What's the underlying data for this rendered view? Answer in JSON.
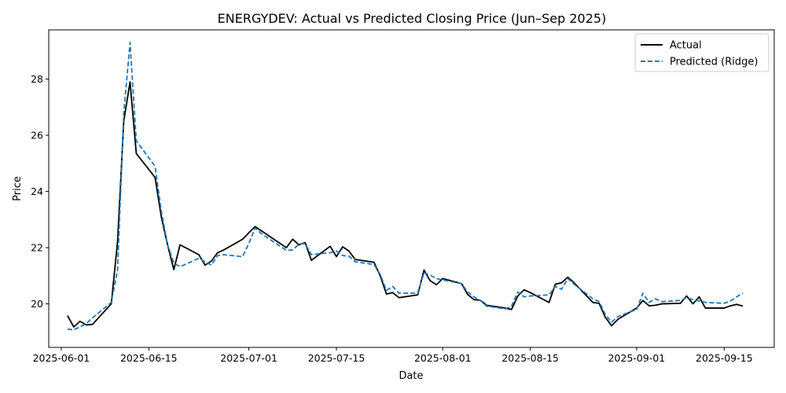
{
  "chart_data": {
    "type": "line",
    "title": "ENERGYDEV: Actual vs Predicted Closing Price (Jun–Sep 2025)",
    "xlabel": "Date",
    "ylabel": "Price",
    "x_range": [
      "2025-05-30",
      "2025-09-23"
    ],
    "ylim": [
      18.45,
      29.75
    ],
    "grid": false,
    "legend_position": "upper right",
    "x_ticks": [
      {
        "date": "2025-06-01",
        "label": "2025-06-01"
      },
      {
        "date": "2025-06-15",
        "label": "2025-06-15"
      },
      {
        "date": "2025-07-01",
        "label": "2025-07-01"
      },
      {
        "date": "2025-07-15",
        "label": "2025-07-15"
      },
      {
        "date": "2025-08-01",
        "label": "2025-08-01"
      },
      {
        "date": "2025-08-15",
        "label": "2025-08-15"
      },
      {
        "date": "2025-09-01",
        "label": "2025-09-01"
      },
      {
        "date": "2025-09-15",
        "label": "2025-09-15"
      }
    ],
    "y_ticks": [
      20,
      22,
      24,
      26,
      28
    ],
    "x": [
      "2025-06-02",
      "2025-06-03",
      "2025-06-04",
      "2025-06-05",
      "2025-06-06",
      "2025-06-09",
      "2025-06-10",
      "2025-06-11",
      "2025-06-12",
      "2025-06-13",
      "2025-06-16",
      "2025-06-17",
      "2025-06-18",
      "2025-06-19",
      "2025-06-20",
      "2025-06-23",
      "2025-06-24",
      "2025-06-25",
      "2025-06-26",
      "2025-06-27",
      "2025-06-30",
      "2025-07-01",
      "2025-07-02",
      "2025-07-03",
      "2025-07-07",
      "2025-07-08",
      "2025-07-09",
      "2025-07-10",
      "2025-07-11",
      "2025-07-14",
      "2025-07-15",
      "2025-07-16",
      "2025-07-17",
      "2025-07-18",
      "2025-07-21",
      "2025-07-22",
      "2025-07-23",
      "2025-07-24",
      "2025-07-25",
      "2025-07-28",
      "2025-07-29",
      "2025-07-30",
      "2025-07-31",
      "2025-08-01",
      "2025-08-04",
      "2025-08-05",
      "2025-08-06",
      "2025-08-07",
      "2025-08-08",
      "2025-08-11",
      "2025-08-12",
      "2025-08-13",
      "2025-08-14",
      "2025-08-15",
      "2025-08-18",
      "2025-08-19",
      "2025-08-20",
      "2025-08-21",
      "2025-08-22",
      "2025-08-25",
      "2025-08-26",
      "2025-08-27",
      "2025-08-28",
      "2025-08-29",
      "2025-09-01",
      "2025-09-02",
      "2025-09-03",
      "2025-09-04",
      "2025-09-05",
      "2025-09-08",
      "2025-09-09",
      "2025-09-10",
      "2025-09-11",
      "2025-09-12",
      "2025-09-15",
      "2025-09-16",
      "2025-09-17",
      "2025-09-18"
    ],
    "series": [
      {
        "name": "Actual",
        "color": "#000000",
        "dash": "solid",
        "values": [
          19.58,
          19.18,
          19.38,
          19.25,
          19.27,
          20.0,
          22.2,
          26.5,
          27.9,
          25.35,
          24.5,
          23.1,
          22.1,
          21.22,
          22.1,
          21.75,
          21.38,
          21.52,
          21.82,
          21.92,
          22.3,
          22.53,
          22.75,
          22.6,
          22.0,
          22.3,
          22.1,
          22.18,
          21.55,
          22.05,
          21.68,
          22.03,
          21.88,
          21.58,
          21.48,
          21.0,
          20.35,
          20.4,
          20.22,
          20.32,
          21.2,
          20.82,
          20.68,
          20.9,
          20.72,
          20.33,
          20.15,
          20.13,
          19.95,
          19.85,
          19.8,
          20.28,
          20.5,
          20.4,
          20.05,
          20.7,
          20.75,
          20.95,
          20.75,
          20.05,
          20.02,
          19.52,
          19.22,
          19.45,
          19.85,
          20.12,
          19.93,
          19.95,
          20.0,
          20.02,
          20.28,
          20.0,
          20.25,
          19.85,
          19.85,
          19.93,
          19.98,
          19.92
        ]
      },
      {
        "name": "Predicted (Ridge)",
        "color": "#1f77b4",
        "dash": "dashed",
        "values": [
          19.1,
          19.08,
          19.18,
          19.3,
          19.5,
          20.05,
          21.2,
          26.8,
          29.3,
          25.8,
          24.9,
          23.3,
          22.1,
          21.45,
          21.32,
          21.62,
          21.5,
          21.38,
          21.72,
          21.75,
          21.68,
          22.15,
          22.7,
          22.5,
          21.9,
          21.92,
          22.12,
          22.15,
          21.75,
          21.82,
          21.88,
          21.72,
          21.7,
          21.5,
          21.4,
          21.05,
          20.48,
          20.62,
          20.38,
          20.38,
          21.1,
          21.02,
          20.9,
          20.85,
          20.72,
          20.42,
          20.25,
          20.12,
          19.92,
          19.82,
          19.92,
          20.42,
          20.25,
          20.28,
          20.32,
          20.62,
          20.52,
          20.9,
          20.7,
          20.18,
          20.08,
          19.62,
          19.35,
          19.55,
          19.8,
          20.38,
          20.05,
          20.18,
          20.08,
          20.12,
          20.22,
          20.15,
          20.1,
          20.05,
          20.02,
          20.1,
          20.25,
          20.38
        ]
      }
    ]
  }
}
